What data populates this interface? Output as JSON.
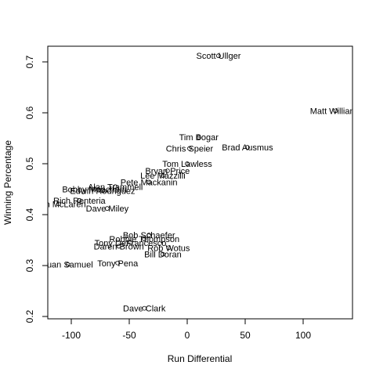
{
  "chart_data": {
    "type": "scatter",
    "xlabel": "Run Differential",
    "ylabel": "Winning Percentage",
    "xlim": [
      -120,
      140
    ],
    "ylim": [
      0.2,
      0.73
    ],
    "x_ticks": [
      -100,
      -50,
      0,
      50,
      100
    ],
    "y_ticks": [
      0.2,
      0.3,
      0.4,
      0.5,
      0.6,
      0.7
    ],
    "x_tick_labels": [
      "-100",
      "-50",
      "0",
      "50",
      "100"
    ],
    "y_tick_labels": [
      "0.2",
      "0.3",
      "0.4",
      "0.5",
      "0.6",
      "0.7"
    ],
    "point_labels_only": true,
    "points": [
      {
        "label": "Scott Ullger",
        "x": 27,
        "y": 0.712
      },
      {
        "label": "Matt Williams",
        "x": 128,
        "y": 0.604
      },
      {
        "label": "Tim Bogar",
        "x": 10,
        "y": 0.552
      },
      {
        "label": "Brad Ausmus",
        "x": 52,
        "y": 0.532
      },
      {
        "label": "Chris Speier",
        "x": 2,
        "y": 0.53
      },
      {
        "label": "Tom Lawless",
        "x": 0,
        "y": 0.5
      },
      {
        "label": "Bryan Price",
        "x": -17,
        "y": 0.486
      },
      {
        "label": "Lee Mazzilli",
        "x": -21,
        "y": 0.477
      },
      {
        "label": "Pete Mackanin",
        "x": -33,
        "y": 0.464
      },
      {
        "label": "Alan Trammell",
        "x": -62,
        "y": 0.455
      },
      {
        "label": "Bobby Meacham",
        "x": -80,
        "y": 0.45
      },
      {
        "label": "Edwin Rodriguez",
        "x": -73,
        "y": 0.447
      },
      {
        "label": "Rich Renteria",
        "x": -93,
        "y": 0.428
      },
      {
        "label": "Juan McLaren",
        "x": -111,
        "y": 0.421
      },
      {
        "label": "Dave Miley",
        "x": -69,
        "y": 0.412
      },
      {
        "label": "Bob Schaefer",
        "x": -33,
        "y": 0.36
      },
      {
        "label": "Robbie Thompson",
        "x": -37,
        "y": 0.352
      },
      {
        "label": "Tony DeFrancesco",
        "x": -49,
        "y": 0.345
      },
      {
        "label": "Daren Brown",
        "x": -59,
        "y": 0.338
      },
      {
        "label": "Rob Wotus",
        "x": -16,
        "y": 0.335
      },
      {
        "label": "Bill Doran",
        "x": -21,
        "y": 0.322
      },
      {
        "label": "Juan Samuel",
        "x": -103,
        "y": 0.302
      },
      {
        "label": "Tony Pena",
        "x": -60,
        "y": 0.305
      },
      {
        "label": "Dave Clark",
        "x": -37,
        "y": 0.216
      }
    ]
  }
}
